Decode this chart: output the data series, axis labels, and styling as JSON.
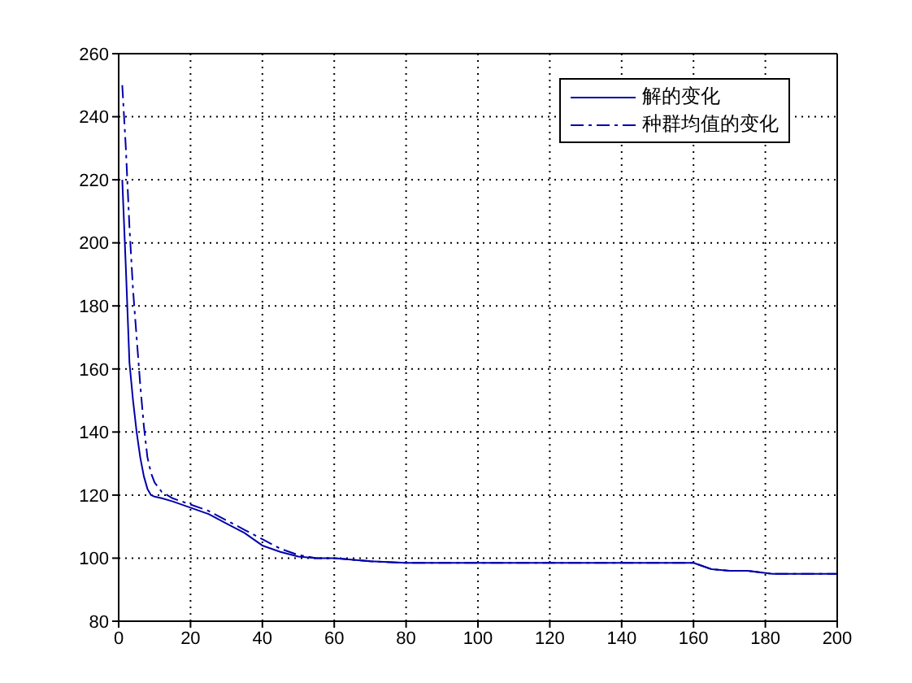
{
  "chart_data": {
    "type": "line",
    "xlim": [
      0,
      200
    ],
    "ylim": [
      80,
      260
    ],
    "xticks": [
      0,
      20,
      40,
      60,
      80,
      100,
      120,
      140,
      160,
      180,
      200
    ],
    "yticks": [
      80,
      100,
      120,
      140,
      160,
      180,
      200,
      220,
      240,
      260
    ],
    "grid": true,
    "legend": "top right",
    "series": [
      {
        "name": "解的变化",
        "color": "#0000aa",
        "line_style": "solid",
        "x": [
          1,
          2,
          3,
          4,
          5,
          6,
          7,
          8,
          9,
          10,
          12,
          15,
          20,
          25,
          30,
          35,
          40,
          45,
          50,
          55,
          60,
          70,
          80,
          100,
          120,
          140,
          160,
          165,
          170,
          175,
          182,
          190,
          200
        ],
        "values": [
          220,
          192,
          162,
          150,
          140,
          132,
          126,
          122,
          120,
          119.5,
          119,
          118,
          116,
          114,
          111,
          108,
          104,
          102,
          100.5,
          100,
          100,
          99,
          98.5,
          98.5,
          98.5,
          98.5,
          98.5,
          96.5,
          96,
          96,
          95,
          95,
          95
        ]
      },
      {
        "name": "种群均值的变化",
        "color": "#0000aa",
        "line_style": "dashed",
        "x": [
          1,
          2,
          3,
          4,
          5,
          6,
          7,
          8,
          9,
          10,
          12,
          15,
          20,
          25,
          30,
          35,
          40,
          45,
          50,
          55,
          60,
          70,
          80,
          100,
          120,
          140,
          160,
          165,
          170,
          175,
          182,
          190,
          200
        ],
        "values": [
          250,
          230,
          205,
          185,
          170,
          155,
          142,
          132,
          127,
          124,
          121,
          119,
          117,
          115,
          112,
          109,
          106,
          103,
          101,
          100,
          100,
          99,
          98.5,
          98.5,
          98.5,
          98.5,
          98.5,
          96.5,
          96,
          96,
          95,
          95,
          95
        ]
      }
    ]
  }
}
